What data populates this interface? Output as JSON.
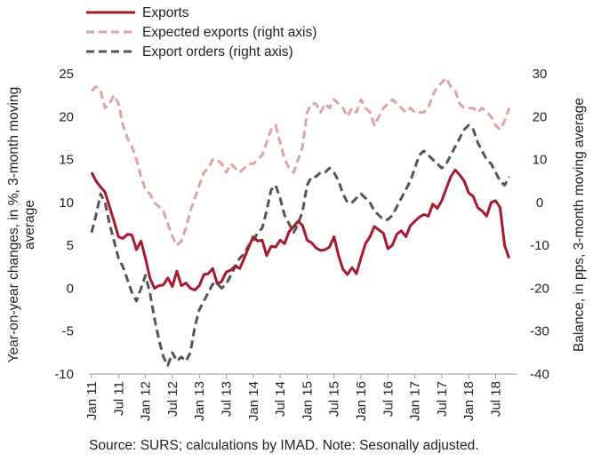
{
  "chart_data": {
    "type": "line",
    "source_note": "Source: SURS; calculations by IMAD. Note: Sesonally adjusted.",
    "ylabel_left": "Year-on-year changes, in %, 3-month moving average",
    "ylabel_right": "Balance, in pps, 3-month moving average",
    "left_axis": {
      "min": -10,
      "max": 25,
      "ticks": [
        -10,
        -5,
        0,
        5,
        10,
        15,
        20,
        25
      ]
    },
    "right_axis": {
      "min": -40,
      "max": 30,
      "ticks": [
        -40,
        -30,
        -20,
        -10,
        0,
        10,
        20,
        30
      ]
    },
    "x_start": "Jan 11",
    "x_tick_labels": [
      "Jan 11",
      "Jul 11",
      "Jan 12",
      "Jul 12",
      "Jan 13",
      "Jul 13",
      "Jan 14",
      "Jul 14",
      "Jan 15",
      "Jul 15",
      "Jan 16",
      "Jul 16",
      "Jan 17",
      "Jul 17",
      "Jan 18",
      "Jul 18"
    ],
    "legend": [
      {
        "label": "Exports",
        "color": "#a6192e",
        "style": "solid"
      },
      {
        "label": "Expected exports (right axis)",
        "color": "#e0a2a2",
        "style": "dashed"
      },
      {
        "label": "Export orders (right axis)",
        "color": "#555555",
        "style": "dashed"
      }
    ],
    "series": [
      {
        "name": "Exports",
        "axis": "left",
        "color": "#a6192e",
        "style": "solid",
        "values": [
          13.5,
          12.5,
          11.8,
          11.2,
          9.5,
          7.8,
          6.0,
          5.8,
          6.3,
          6.2,
          4.5,
          5.5,
          3.5,
          1.2,
          0.0,
          0.3,
          0.4,
          1.2,
          0.2,
          2.0,
          0.3,
          0.6,
          0.0,
          -0.2,
          0.3,
          1.6,
          1.7,
          2.3,
          0.5,
          0.8,
          1.9,
          2.1,
          2.6,
          2.3,
          3.5,
          4.8,
          6.0,
          5.5,
          5.6,
          3.8,
          4.9,
          4.8,
          5.6,
          5.2,
          6.6,
          7.2,
          7.8,
          7.3,
          5.6,
          5.3,
          4.7,
          4.4,
          4.5,
          4.8,
          6.0,
          3.8,
          2.2,
          1.6,
          2.4,
          1.7,
          3.5,
          5.2,
          6.0,
          7.2,
          6.8,
          6.4,
          4.6,
          5.0,
          6.3,
          6.7,
          6.0,
          7.3,
          7.8,
          8.3,
          8.6,
          8.4,
          9.8,
          9.3,
          10.2,
          11.6,
          13.0,
          13.8,
          13.2,
          12.5,
          11.1,
          10.7,
          9.4,
          9.0,
          8.4,
          10.0,
          10.2,
          9.4,
          5.0,
          3.5
        ]
      },
      {
        "name": "Expected exports (right axis)",
        "axis": "right",
        "color": "#e0a2a2",
        "style": "dashed",
        "values": [
          26,
          27,
          26,
          22,
          23,
          25,
          23,
          18,
          15,
          13,
          10,
          6,
          3,
          2,
          0,
          -1,
          -2,
          -5,
          -8,
          -10,
          -9,
          -6,
          -2,
          1,
          4,
          7,
          8,
          10,
          10,
          9,
          7,
          9,
          8,
          7,
          8,
          9,
          9,
          10,
          11,
          14,
          17,
          18,
          14,
          10,
          8,
          7,
          10,
          13,
          21,
          23,
          23,
          21,
          23,
          22,
          24,
          23,
          22,
          20,
          22,
          21,
          24,
          22,
          21,
          18,
          20,
          22,
          23,
          24,
          23,
          22,
          21,
          22,
          21,
          21,
          21,
          22,
          25,
          27,
          28,
          29,
          27,
          26,
          23,
          22,
          22,
          22,
          21,
          22,
          21,
          20,
          18,
          17,
          19,
          22
        ]
      },
      {
        "name": "Export orders (right axis)",
        "axis": "right",
        "color": "#555555",
        "style": "dashed",
        "values": [
          -7,
          -3,
          2,
          0,
          -5,
          -9,
          -13,
          -15,
          -18,
          -21,
          -23,
          -20,
          -17,
          -21,
          -27,
          -32,
          -36,
          -38,
          -35,
          -37,
          -36,
          -37,
          -35,
          -29,
          -25,
          -23,
          -21,
          -19,
          -19,
          -20,
          -19,
          -17,
          -15,
          -13,
          -12,
          -10,
          -9,
          -7,
          -6,
          -2,
          3,
          4,
          1,
          -3,
          -5,
          -7,
          -5,
          -2,
          4,
          6,
          6,
          7,
          7,
          8,
          7,
          5,
          2,
          0,
          0,
          1,
          2,
          1,
          0,
          -2,
          -3,
          -4,
          -4,
          -3,
          -1,
          1,
          3,
          5,
          8,
          11,
          12,
          11,
          10,
          9,
          8,
          9,
          11,
          13,
          15,
          17,
          18,
          17,
          14,
          12,
          10,
          9,
          7,
          5,
          4,
          6
        ]
      }
    ]
  }
}
